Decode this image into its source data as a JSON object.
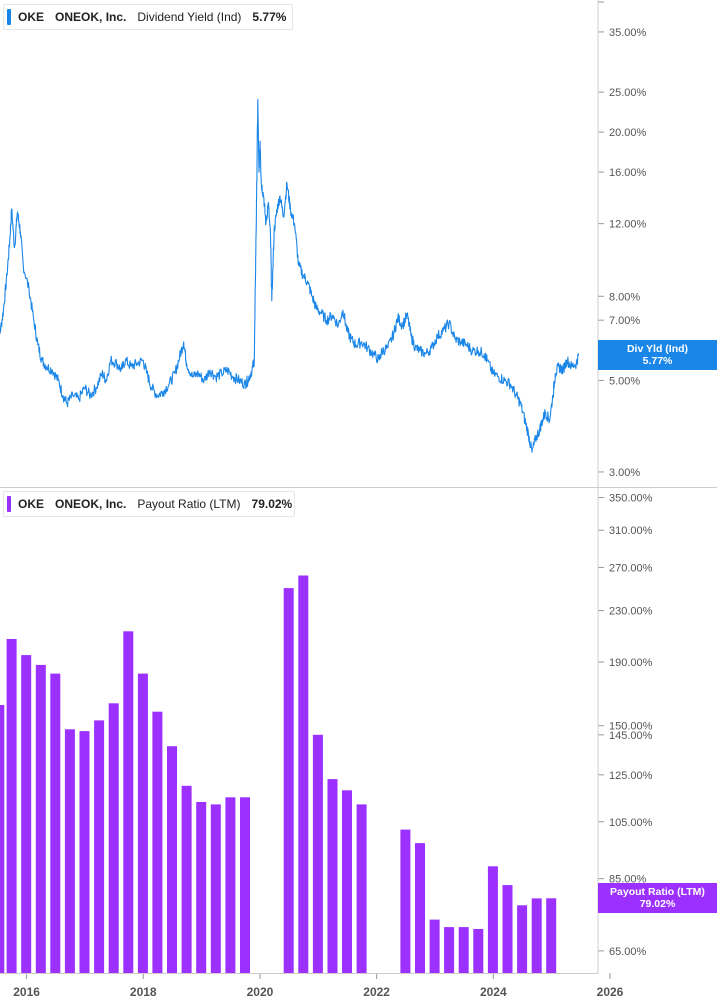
{
  "colors": {
    "yield_line": "#1a86e8",
    "payout_bar": "#9b30ff",
    "axis_text": "#555555",
    "grid": "#d9d9d9"
  },
  "legend_top": {
    "ticker": "OKE",
    "company": "ONEOK, Inc.",
    "metric": "Dividend Yield (Ind)",
    "value": "5.77%"
  },
  "legend_bottom": {
    "ticker": "OKE",
    "company": "ONEOK, Inc.",
    "metric": "Payout Ratio (LTM)",
    "value": "79.02%"
  },
  "tag_top": {
    "label": "Div Yld (Ind)",
    "value": "5.77%"
  },
  "tag_bottom": {
    "label": "Payout Ratio (LTM)",
    "value": "79.02%"
  },
  "chart_data": [
    {
      "type": "line",
      "series": [
        {
          "name": "Dividend Yield (Ind)"
        }
      ],
      "y_scale": "log",
      "y_ticks": [
        "35.00%",
        "25.00%",
        "20.00%",
        "16.00%",
        "12.00%",
        "8.00%",
        "7.00%",
        "5.00%",
        "3.00%"
      ],
      "y_tick_values": [
        35,
        25,
        20,
        16,
        12,
        8,
        7,
        5,
        3
      ],
      "ylim": [
        2.9,
        40
      ],
      "xlim": [
        2015.75,
        2026
      ],
      "points": [
        [
          2015.76,
          7.2
        ],
        [
          2015.8,
          6.5
        ],
        [
          2015.86,
          7.4
        ],
        [
          2015.92,
          9.0
        ],
        [
          2015.97,
          11.0
        ],
        [
          2016.0,
          13.0
        ],
        [
          2016.05,
          10.5
        ],
        [
          2016.1,
          12.8
        ],
        [
          2016.15,
          11.5
        ],
        [
          2016.2,
          9.5
        ],
        [
          2016.3,
          8.3
        ],
        [
          2016.38,
          7.0
        ],
        [
          2016.45,
          6.1
        ],
        [
          2016.52,
          5.6
        ],
        [
          2016.6,
          5.4
        ],
        [
          2016.7,
          5.3
        ],
        [
          2016.8,
          5.0
        ],
        [
          2016.88,
          4.6
        ],
        [
          2016.95,
          4.4
        ],
        [
          2017.05,
          4.6
        ],
        [
          2017.15,
          4.5
        ],
        [
          2017.25,
          4.8
        ],
        [
          2017.35,
          4.6
        ],
        [
          2017.45,
          4.8
        ],
        [
          2017.55,
          5.2
        ],
        [
          2017.62,
          5.0
        ],
        [
          2017.7,
          5.6
        ],
        [
          2017.8,
          5.5
        ],
        [
          2017.88,
          5.3
        ],
        [
          2017.95,
          5.6
        ],
        [
          2018.05,
          5.4
        ],
        [
          2018.15,
          5.5
        ],
        [
          2018.25,
          5.6
        ],
        [
          2018.32,
          5.2
        ],
        [
          2018.4,
          4.8
        ],
        [
          2018.5,
          4.6
        ],
        [
          2018.6,
          4.7
        ],
        [
          2018.7,
          4.9
        ],
        [
          2018.8,
          5.2
        ],
        [
          2018.88,
          5.7
        ],
        [
          2018.95,
          6.2
        ],
        [
          2019.0,
          5.5
        ],
        [
          2019.1,
          5.1
        ],
        [
          2019.2,
          5.2
        ],
        [
          2019.3,
          5.0
        ],
        [
          2019.4,
          5.3
        ],
        [
          2019.5,
          5.1
        ],
        [
          2019.6,
          5.2
        ],
        [
          2019.7,
          5.3
        ],
        [
          2019.8,
          5.1
        ],
        [
          2019.9,
          5.0
        ],
        [
          2020.0,
          4.9
        ],
        [
          2020.05,
          5.0
        ],
        [
          2020.12,
          5.3
        ],
        [
          2020.16,
          5.6
        ],
        [
          2020.18,
          9.0
        ],
        [
          2020.2,
          14.0
        ],
        [
          2020.22,
          24.0
        ],
        [
          2020.24,
          16.0
        ],
        [
          2020.26,
          19.0
        ],
        [
          2020.28,
          15.0
        ],
        [
          2020.32,
          14.0
        ],
        [
          2020.36,
          12.0
        ],
        [
          2020.4,
          13.5
        ],
        [
          2020.44,
          11.0
        ],
        [
          2020.46,
          7.8
        ],
        [
          2020.5,
          11.5
        ],
        [
          2020.55,
          13.0
        ],
        [
          2020.6,
          14.0
        ],
        [
          2020.66,
          12.5
        ],
        [
          2020.72,
          15.0
        ],
        [
          2020.78,
          13.0
        ],
        [
          2020.85,
          12.0
        ],
        [
          2020.92,
          9.5
        ],
        [
          2021.0,
          9.0
        ],
        [
          2021.08,
          8.6
        ],
        [
          2021.15,
          8.0
        ],
        [
          2021.22,
          7.5
        ],
        [
          2021.3,
          7.3
        ],
        [
          2021.4,
          7.0
        ],
        [
          2021.5,
          7.2
        ],
        [
          2021.6,
          6.8
        ],
        [
          2021.68,
          7.4
        ],
        [
          2021.75,
          6.6
        ],
        [
          2021.82,
          6.3
        ],
        [
          2021.9,
          6.1
        ],
        [
          2022.0,
          6.2
        ],
        [
          2022.1,
          6.0
        ],
        [
          2022.2,
          5.8
        ],
        [
          2022.3,
          5.6
        ],
        [
          2022.35,
          5.9
        ],
        [
          2022.45,
          6.0
        ],
        [
          2022.55,
          6.5
        ],
        [
          2022.62,
          7.1
        ],
        [
          2022.7,
          6.8
        ],
        [
          2022.78,
          7.2
        ],
        [
          2022.85,
          6.4
        ],
        [
          2022.92,
          6.0
        ],
        [
          2023.0,
          5.9
        ],
        [
          2023.1,
          5.8
        ],
        [
          2023.2,
          6.0
        ],
        [
          2023.3,
          6.4
        ],
        [
          2023.4,
          6.6
        ],
        [
          2023.5,
          6.9
        ],
        [
          2023.6,
          6.3
        ],
        [
          2023.7,
          6.2
        ],
        [
          2023.8,
          6.1
        ],
        [
          2023.9,
          5.9
        ],
        [
          2024.0,
          5.9
        ],
        [
          2024.1,
          5.8
        ],
        [
          2024.15,
          5.6
        ],
        [
          2024.25,
          5.2
        ],
        [
          2024.35,
          5.1
        ],
        [
          2024.45,
          5.0
        ],
        [
          2024.55,
          4.9
        ],
        [
          2024.65,
          4.6
        ],
        [
          2024.72,
          4.4
        ],
        [
          2024.8,
          4.0
        ],
        [
          2024.86,
          3.7
        ],
        [
          2024.92,
          3.35
        ],
        [
          2024.98,
          3.6
        ],
        [
          2025.05,
          3.8
        ],
        [
          2025.1,
          4.0
        ],
        [
          2025.15,
          4.2
        ],
        [
          2025.22,
          4.0
        ],
        [
          2025.28,
          4.6
        ],
        [
          2025.32,
          5.2
        ],
        [
          2025.38,
          5.4
        ],
        [
          2025.45,
          5.3
        ],
        [
          2025.52,
          5.6
        ],
        [
          2025.6,
          5.4
        ],
        [
          2025.68,
          5.5
        ],
        [
          2025.72,
          5.77
        ]
      ]
    },
    {
      "type": "bar",
      "series": [
        {
          "name": "Payout Ratio (LTM)"
        }
      ],
      "y_scale": "log",
      "y_ticks": [
        "350.00%",
        "310.00%",
        "270.00%",
        "230.00%",
        "190.00%",
        "150.00%",
        "145.00%",
        "125.00%",
        "105.00%",
        "85.00%",
        "65.00%"
      ],
      "y_tick_values": [
        350,
        310,
        270,
        230,
        190,
        150,
        145,
        125,
        105,
        85,
        65
      ],
      "ylim": [
        61,
        352
      ],
      "xlim": [
        2015.75,
        2026
      ],
      "x_ticks": [
        "2016",
        "2018",
        "2020",
        "2022",
        "2024",
        "2026"
      ],
      "x_tick_values": [
        2016,
        2018,
        2020,
        2022,
        2024,
        2026
      ],
      "values": [
        [
          2015.79,
          162
        ],
        [
          2016.0,
          207
        ],
        [
          2016.25,
          195
        ],
        [
          2016.5,
          188
        ],
        [
          2016.75,
          182
        ],
        [
          2017.0,
          148
        ],
        [
          2017.25,
          147
        ],
        [
          2017.5,
          153
        ],
        [
          2017.75,
          163
        ],
        [
          2018.0,
          213
        ],
        [
          2018.25,
          182
        ],
        [
          2018.5,
          158
        ],
        [
          2018.75,
          139
        ],
        [
          2019.0,
          120
        ],
        [
          2019.25,
          113
        ],
        [
          2019.5,
          112
        ],
        [
          2019.75,
          115
        ],
        [
          2020.0,
          115
        ],
        [
          2020.75,
          250
        ],
        [
          2021.0,
          262
        ],
        [
          2021.25,
          145
        ],
        [
          2021.5,
          123
        ],
        [
          2021.75,
          118
        ],
        [
          2022.0,
          112
        ],
        [
          2022.75,
          102
        ],
        [
          2023.0,
          97
        ],
        [
          2023.25,
          73
        ],
        [
          2023.5,
          71
        ],
        [
          2023.75,
          71
        ],
        [
          2024.0,
          70.5
        ],
        [
          2024.25,
          89
        ],
        [
          2024.5,
          83
        ],
        [
          2024.75,
          77
        ],
        [
          2025.0,
          79
        ],
        [
          2025.25,
          79.02
        ]
      ]
    }
  ]
}
